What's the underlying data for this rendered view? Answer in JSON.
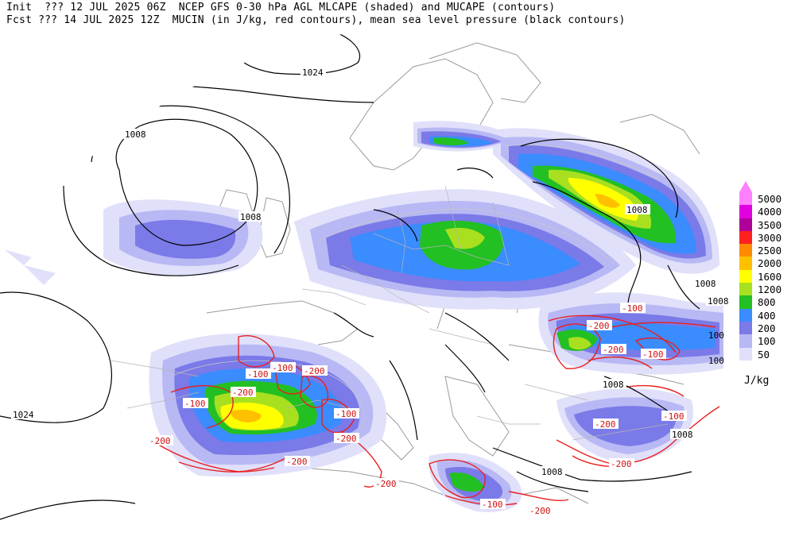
{
  "header": {
    "line1": "Init  ??? 12 JUL 2025 06Z  NCEP GFS 0-30 hPa AGL MLCAPE (shaded) and MUCAPE (contours)",
    "line2": "Fcst ??? 14 JUL 2025 12Z  MUCIN (in J/kg, red contours), mean sea level pressure (black contours)"
  },
  "legend": {
    "unit": "J/kg",
    "levels": [
      {
        "label": "5000",
        "color": "#ff80ff"
      },
      {
        "label": "4000",
        "color": "#e000e0"
      },
      {
        "label": "3500",
        "color": "#b0009a"
      },
      {
        "label": "3000",
        "color": "#ff2020"
      },
      {
        "label": "2500",
        "color": "#ff8a00"
      },
      {
        "label": "2000",
        "color": "#ffc000"
      },
      {
        "label": "1600",
        "color": "#ffff00"
      },
      {
        "label": "1200",
        "color": "#a8e020"
      },
      {
        "label": "800",
        "color": "#22c022"
      },
      {
        "label": "400",
        "color": "#3a8cff"
      },
      {
        "label": "200",
        "color": "#7a7ae8"
      },
      {
        "label": "100",
        "color": "#b8b8f4"
      },
      {
        "label": "50",
        "color": "#e0e0fa"
      }
    ]
  },
  "map": {
    "pressure_labels": [
      "1024",
      "1008",
      "1008",
      "1008",
      "1008",
      "1008",
      "1008",
      "1008",
      "1008",
      "1024"
    ],
    "cin_labels": [
      "-100",
      "-100",
      "-200",
      "-100",
      "-200",
      "-100",
      "-200",
      "-200",
      "-200",
      "-200",
      "-100",
      "-200",
      "-200",
      "-100",
      "-200",
      "-100",
      "-100",
      "-200",
      "-200"
    ],
    "extra_labels": [
      "100",
      "100"
    ]
  }
}
